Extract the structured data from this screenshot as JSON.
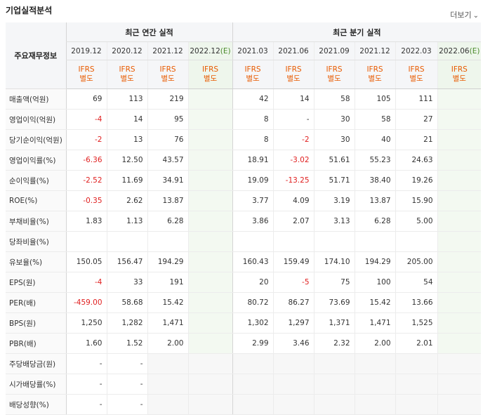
{
  "title": "기업실적분석",
  "more_label": "더보기",
  "more_icon": "chevron-down-icon",
  "label_header": "주요재무정보",
  "groups": {
    "annual": "최근 연간 실적",
    "quarterly": "최근 분기 실적"
  },
  "periods": [
    "2019.12",
    "2020.12",
    "2021.12",
    "2022.12",
    "2021.03",
    "2021.06",
    "2021.09",
    "2021.12",
    "2022.03",
    "2022.06"
  ],
  "estimate_suffix": "(E)",
  "ifrs_label": "IFRS",
  "ifrs_sub": "별도",
  "rows": [
    {
      "label": "매출액(억원)",
      "values": [
        "69",
        "113",
        "219",
        "",
        "42",
        "14",
        "58",
        "105",
        "111",
        ""
      ]
    },
    {
      "label": "영업이익(억원)",
      "values": [
        "-4",
        "14",
        "95",
        "",
        "8",
        "-",
        "30",
        "58",
        "27",
        ""
      ]
    },
    {
      "label": "당기순이익(억원)",
      "values": [
        "-2",
        "13",
        "76",
        "",
        "8",
        "-2",
        "30",
        "40",
        "21",
        ""
      ]
    },
    {
      "label": "영업이익률(%)",
      "values": [
        "-6.36",
        "12.50",
        "43.57",
        "",
        "18.91",
        "-3.02",
        "51.61",
        "55.23",
        "24.63",
        ""
      ]
    },
    {
      "label": "순이익률(%)",
      "values": [
        "-2.52",
        "11.69",
        "34.91",
        "",
        "19.09",
        "-13.25",
        "51.71",
        "38.40",
        "19.26",
        ""
      ]
    },
    {
      "label": "ROE(%)",
      "values": [
        "-0.35",
        "2.62",
        "13.87",
        "",
        "3.77",
        "4.09",
        "3.19",
        "13.87",
        "15.90",
        ""
      ]
    },
    {
      "label": "부채비율(%)",
      "values": [
        "1.83",
        "1.13",
        "6.28",
        "",
        "3.86",
        "2.07",
        "3.13",
        "6.28",
        "5.00",
        ""
      ]
    },
    {
      "label": "당좌비율(%)",
      "values": [
        "",
        "",
        "",
        "",
        "",
        "",
        "",
        "",
        "",
        ""
      ]
    },
    {
      "label": "유보율(%)",
      "values": [
        "150.05",
        "156.47",
        "194.29",
        "",
        "160.43",
        "159.49",
        "174.10",
        "194.29",
        "205.00",
        ""
      ]
    },
    {
      "label": "EPS(원)",
      "values": [
        "-4",
        "33",
        "191",
        "",
        "20",
        "-5",
        "75",
        "100",
        "54",
        ""
      ]
    },
    {
      "label": "PER(배)",
      "values": [
        "-459.00",
        "58.68",
        "15.42",
        "",
        "80.72",
        "86.27",
        "73.69",
        "15.42",
        "13.66",
        ""
      ]
    },
    {
      "label": "BPS(원)",
      "values": [
        "1,250",
        "1,282",
        "1,471",
        "",
        "1,302",
        "1,297",
        "1,371",
        "1,471",
        "1,525",
        ""
      ]
    },
    {
      "label": "PBR(배)",
      "values": [
        "1.60",
        "1.52",
        "2.00",
        "",
        "2.99",
        "3.46",
        "2.32",
        "2.00",
        "2.01",
        ""
      ]
    },
    {
      "label": "주당배당금(원)",
      "values": [
        "-",
        "-",
        "",
        "",
        "",
        "",
        "",
        "",
        "",
        ""
      ],
      "empty_from": 2
    },
    {
      "label": "시가배당률(%)",
      "values": [
        "-",
        "-",
        "",
        "",
        "",
        "",
        "",
        "",
        "",
        ""
      ],
      "empty_from": 2
    },
    {
      "label": "배당성향(%)",
      "values": [
        "-",
        "-",
        "",
        "",
        "",
        "",
        "",
        "",
        "",
        ""
      ],
      "empty_from": 2
    }
  ]
}
